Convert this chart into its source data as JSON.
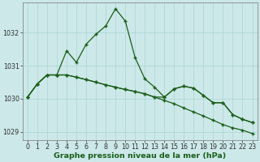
{
  "xlabel": "Graphe pression niveau de la mer (hPa)",
  "background_color": "#cce8e8",
  "grid_color": "#b0d8d8",
  "line_color": "#1a5e1a",
  "x": [
    0,
    1,
    2,
    3,
    4,
    5,
    6,
    7,
    8,
    9,
    10,
    11,
    12,
    13,
    14,
    15,
    16,
    17,
    18,
    19,
    20,
    21,
    22,
    23
  ],
  "line1": [
    1030.05,
    1030.45,
    1030.72,
    1030.72,
    1031.45,
    1031.1,
    1031.65,
    1031.95,
    1032.2,
    1032.72,
    1032.35,
    1031.25,
    1030.6,
    1030.35,
    1030.05,
    1030.3,
    1030.38,
    1030.32,
    1030.1,
    1029.88,
    1029.88,
    1029.52,
    1029.38,
    1029.28
  ],
  "line2": [
    1030.05,
    1030.45,
    1030.72,
    1030.72,
    1030.72,
    1030.65,
    1030.58,
    1030.5,
    1030.42,
    1030.35,
    1030.28,
    1030.22,
    1030.15,
    1030.05,
    1030.05,
    1030.3,
    1030.38,
    1030.32,
    1030.1,
    1029.88,
    1029.88,
    1029.52,
    1029.38,
    1029.28
  ],
  "line3": [
    1030.05,
    1030.45,
    1030.72,
    1030.72,
    1030.72,
    1030.65,
    1030.58,
    1030.5,
    1030.42,
    1030.35,
    1030.28,
    1030.22,
    1030.15,
    1030.05,
    1029.95,
    1029.85,
    1029.72,
    1029.6,
    1029.48,
    1029.35,
    1029.22,
    1029.12,
    1029.05,
    1028.95
  ],
  "ylim": [
    1028.75,
    1032.9
  ],
  "yticks": [
    1029,
    1030,
    1031,
    1032
  ],
  "xticks": [
    0,
    1,
    2,
    3,
    4,
    5,
    6,
    7,
    8,
    9,
    10,
    11,
    12,
    13,
    14,
    15,
    16,
    17,
    18,
    19,
    20,
    21,
    22,
    23
  ],
  "marker": "+",
  "markersize": 3.5,
  "linewidth": 0.9,
  "xlabel_fontsize": 6.8,
  "tick_fontsize": 5.8,
  "xlabel_color": "#1a5e1a"
}
